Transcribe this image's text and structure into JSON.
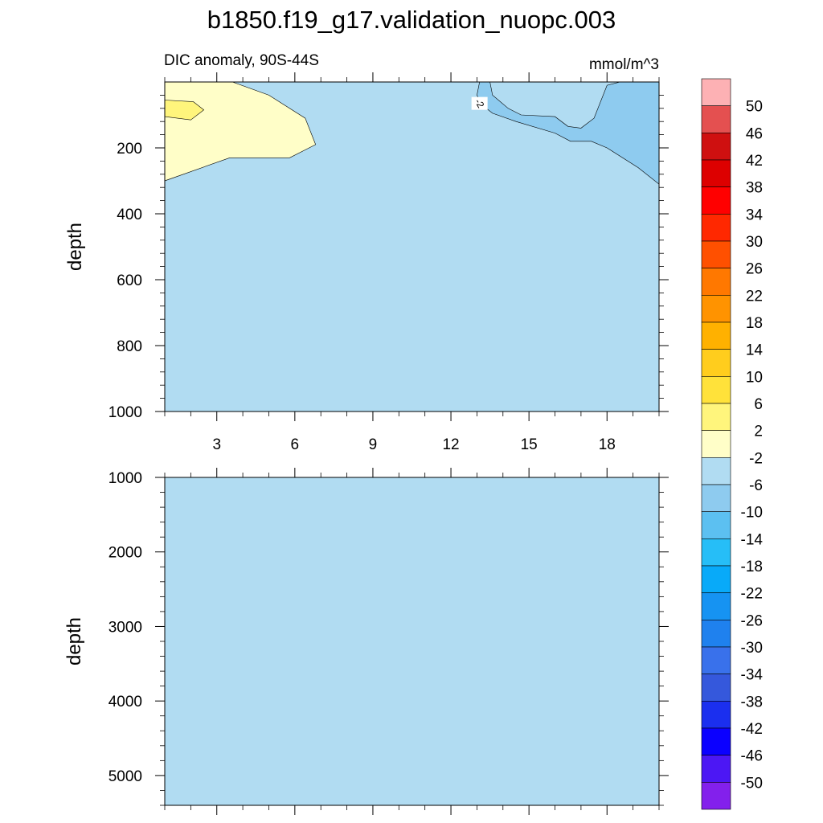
{
  "chart_data": {
    "type": "heatmap",
    "title": "b1850.f19_g17.validation_nuopc.003",
    "panels": [
      {
        "left_label": "DIC anomaly, 90S-44S",
        "right_label": "mmol/m^3",
        "xlabel": "",
        "ylabel": "depth",
        "xlim": [
          1,
          20
        ],
        "ylim": [
          0,
          1000
        ],
        "y_reversed": true,
        "x_ticks": [
          3,
          6,
          9,
          12,
          15,
          18
        ],
        "x_tick_labels": [
          "3",
          "6",
          "9",
          "12",
          "15",
          "18"
        ],
        "y_ticks": [
          200,
          400,
          600,
          800,
          1000
        ],
        "y_tick_labels": [
          "200",
          "400",
          "600",
          "800",
          "1000"
        ],
        "background_level": "-2 to 2",
        "features": [
          {
            "level": "2 to 6",
            "description": "positive anomaly near surface, x 1 to 6.8, depth 0 to 300",
            "outline": [
              [
                1,
                0
              ],
              [
                3.6,
                0
              ],
              [
                5,
                40
              ],
              [
                6.4,
                110
              ],
              [
                6.8,
                190
              ],
              [
                5.8,
                230
              ],
              [
                3.5,
                230
              ],
              [
                1,
                300
              ]
            ]
          },
          {
            "level": "6 to 10",
            "description": "core at x 1 to 2.5, depth 50 to 115",
            "outline": [
              [
                1,
                55
              ],
              [
                2.1,
                60
              ],
              [
                2.5,
                85
              ],
              [
                2.0,
                115
              ],
              [
                1,
                105
              ]
            ]
          },
          {
            "level": "-6 to -2",
            "description": "negative anomaly near surface, x 13 to 20, depth 0 to 310",
            "outline": [
              [
                13.1,
                0
              ],
              [
                13.5,
                0
              ],
              [
                13.6,
                40
              ],
              [
                14.2,
                80
              ],
              [
                14.7,
                100
              ],
              [
                16.0,
                105
              ],
              [
                16.5,
                135
              ],
              [
                17.0,
                140
              ],
              [
                17.5,
                110
              ],
              [
                18.0,
                10
              ],
              [
                18.5,
                0
              ],
              [
                20,
                0
              ],
              [
                20,
                310
              ],
              [
                19.2,
                260
              ],
              [
                18.0,
                200
              ],
              [
                17.4,
                180
              ],
              [
                16.6,
                180
              ],
              [
                16.0,
                155
              ],
              [
                14.5,
                120
              ],
              [
                13.6,
                95
              ],
              [
                13.2,
                70
              ],
              [
                13.0,
                40
              ]
            ]
          }
        ],
        "contour_labels": [
          {
            "text": "-2",
            "x": 13.1,
            "depth": 65
          }
        ]
      },
      {
        "left_label": "",
        "right_label": "",
        "xlabel": "",
        "ylabel": "depth",
        "xlim": [
          1,
          20
        ],
        "ylim": [
          1000,
          5400
        ],
        "y_reversed": true,
        "x_ticks": [
          3,
          6,
          9,
          12,
          15,
          18
        ],
        "x_tick_labels": [],
        "y_ticks": [
          1000,
          2000,
          3000,
          4000,
          5000
        ],
        "y_tick_labels": [
          "1000",
          "2000",
          "3000",
          "4000",
          "5000"
        ],
        "background_level": "-2 to 2",
        "features": [],
        "contour_labels": []
      }
    ],
    "colorbar": {
      "unit": "mmol/m^3",
      "labels": [
        "50",
        "46",
        "42",
        "38",
        "34",
        "30",
        "26",
        "22",
        "18",
        "14",
        "10",
        "6",
        "2",
        "-2",
        "-6",
        "-10",
        "-14",
        "-18",
        "-22",
        "-26",
        "-30",
        "-34",
        "-38",
        "-42",
        "-46",
        "-50"
      ],
      "colors": [
        "#fdb1b4",
        "#e45050",
        "#cf1010",
        "#dd0000",
        "#ff0000",
        "#ff2800",
        "#ff5000",
        "#ff7800",
        "#ff9300",
        "#ffb100",
        "#ffcd1d",
        "#ffe23a",
        "#fff57c",
        "#fffec8",
        "#b1dcf2",
        "#8ecbef",
        "#5cc0f1",
        "#26bef7",
        "#08aaf9",
        "#1693f2",
        "#1f81ee",
        "#3971eb",
        "#3558dc",
        "#1b2fef",
        "#0b00ff",
        "#4c17f4",
        "#8320ec"
      ]
    }
  }
}
